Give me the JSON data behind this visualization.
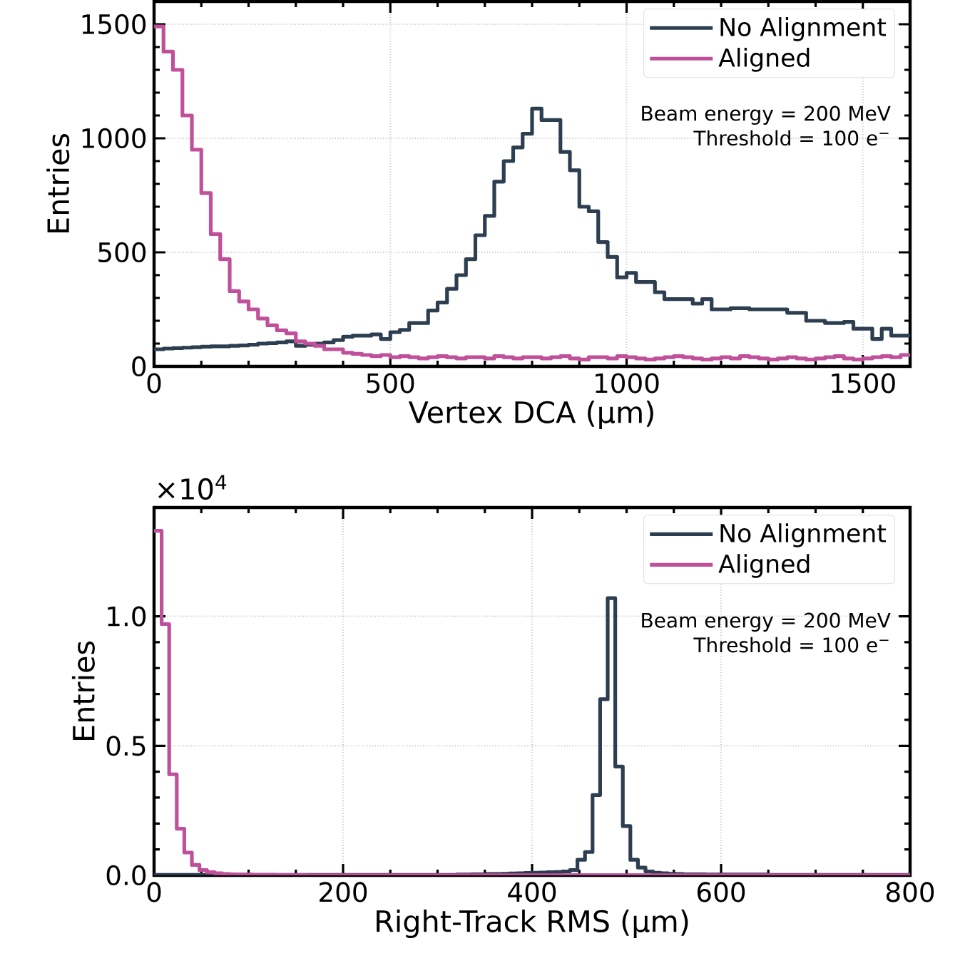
{
  "chart_data": [
    {
      "type": "histogram",
      "xlabel": "Vertex DCA (μm)",
      "ylabel": "Entries",
      "bins": [
        0,
        20,
        40,
        60,
        80,
        100,
        120,
        140,
        160,
        180,
        200,
        220,
        240,
        260,
        280,
        300,
        320,
        340,
        360,
        380,
        400,
        420,
        440,
        460,
        480,
        500,
        520,
        540,
        560,
        580,
        600,
        620,
        640,
        660,
        680,
        700,
        720,
        740,
        760,
        780,
        800,
        820,
        840,
        860,
        880,
        900,
        920,
        940,
        960,
        980,
        1000,
        1020,
        1040,
        1060,
        1080,
        1100,
        1120,
        1140,
        1160,
        1180,
        1200,
        1220,
        1240,
        1260,
        1280,
        1300,
        1320,
        1340,
        1360,
        1380,
        1400,
        1420,
        1440,
        1460,
        1480,
        1500,
        1520,
        1540,
        1560,
        1580,
        1600
      ],
      "series": [
        {
          "name": "No Alignment",
          "color": "#2c3e50",
          "values": [
            75,
            78,
            80,
            82,
            84,
            86,
            88,
            88,
            90,
            92,
            95,
            100,
            102,
            105,
            110,
            90,
            95,
            100,
            105,
            115,
            130,
            135,
            135,
            140,
            120,
            150,
            160,
            190,
            190,
            245,
            280,
            340,
            400,
            470,
            575,
            660,
            810,
            900,
            960,
            1020,
            1130,
            1080,
            1080,
            940,
            860,
            700,
            680,
            545,
            480,
            390,
            410,
            370,
            370,
            325,
            295,
            295,
            295,
            275,
            295,
            250,
            250,
            255,
            255,
            250,
            250,
            250,
            250,
            235,
            235,
            200,
            200,
            190,
            190,
            195,
            165,
            165,
            120,
            165,
            135,
            135
          ]
        },
        {
          "name": "Aligned",
          "color": "#c0509a",
          "values": [
            1490,
            1380,
            1300,
            1100,
            950,
            760,
            580,
            470,
            330,
            285,
            250,
            210,
            180,
            158,
            145,
            110,
            100,
            90,
            75,
            75,
            60,
            55,
            50,
            45,
            50,
            40,
            45,
            40,
            35,
            40,
            45,
            40,
            35,
            40,
            40,
            35,
            45,
            40,
            35,
            40,
            40,
            35,
            40,
            45,
            35,
            30,
            40,
            40,
            35,
            45,
            40,
            35,
            30,
            35,
            40,
            45,
            40,
            35,
            30,
            35,
            40,
            35,
            45,
            40,
            35,
            30,
            35,
            40,
            35,
            30,
            35,
            40,
            45,
            35,
            30,
            35,
            40,
            45,
            40,
            50
          ]
        }
      ],
      "xlim": [
        0,
        1600
      ],
      "ylim": [
        0,
        1600
      ],
      "xticks": [
        0,
        500,
        1000,
        1500
      ],
      "yticks": [
        0,
        500,
        1000,
        1500
      ],
      "grid": true,
      "legend": "top right",
      "annotations": [
        "Beam energy = 200 MeV",
        "Threshold = 100 e$^{−}$"
      ]
    },
    {
      "type": "histogram",
      "xlabel": "Right-Track RMS (μm)",
      "ylabel": "Entries",
      "bins": [
        0,
        8,
        16,
        24,
        32,
        40,
        48,
        56,
        64,
        72,
        80,
        88,
        96,
        104,
        112,
        120,
        128,
        136,
        144,
        152,
        160,
        168,
        176,
        184,
        192,
        200,
        208,
        216,
        224,
        232,
        240,
        248,
        256,
        264,
        272,
        280,
        288,
        296,
        304,
        312,
        320,
        328,
        336,
        344,
        352,
        360,
        368,
        376,
        384,
        392,
        400,
        408,
        416,
        424,
        432,
        440,
        448,
        456,
        464,
        472,
        480,
        488,
        496,
        504,
        512,
        520,
        528,
        536,
        544,
        552,
        560,
        568,
        576,
        584,
        592,
        600,
        608,
        616,
        624,
        632,
        640,
        648,
        656,
        664,
        672,
        680,
        688,
        696,
        704,
        712,
        720,
        728,
        736,
        744,
        752,
        760,
        768,
        776,
        784,
        792,
        800
      ],
      "series": [
        {
          "name": "No Alignment",
          "color": "#2c3e50",
          "values": [
            0.002,
            0.002,
            0.002,
            0.002,
            0.002,
            0.002,
            0.002,
            0.002,
            0.002,
            0.002,
            0.002,
            0.002,
            0.002,
            0.002,
            0.002,
            0.002,
            0.002,
            0.002,
            0.002,
            0.002,
            0.002,
            0.002,
            0.002,
            0.002,
            0.002,
            0.002,
            0.002,
            0.002,
            0.002,
            0.002,
            0.002,
            0.002,
            0.002,
            0.002,
            0.002,
            0.002,
            0.002,
            0.002,
            0.002,
            0.002,
            0.003,
            0.003,
            0.004,
            0.004,
            0.005,
            0.005,
            0.006,
            0.007,
            0.008,
            0.009,
            0.01,
            0.011,
            0.012,
            0.013,
            0.015,
            0.02,
            0.06,
            0.09,
            0.31,
            0.68,
            1.07,
            0.42,
            0.19,
            0.06,
            0.03,
            0.015,
            0.01,
            0.008,
            0.006,
            0.005,
            0.004,
            0.004,
            0.004,
            0.003,
            0.003,
            0.003,
            0.003,
            0.003,
            0.003,
            0.003,
            0.003,
            0.002,
            0.002,
            0.002,
            0.002,
            0.002,
            0.002,
            0.002,
            0.002,
            0.002,
            0.002,
            0.002,
            0.002,
            0.002,
            0.002,
            0.002,
            0.002,
            0.002,
            0.002,
            0.002
          ]
        },
        {
          "name": "Aligned",
          "color": "#c0509a",
          "values": [
            1.33,
            0.97,
            0.39,
            0.18,
            0.088,
            0.04,
            0.02,
            0.012,
            0.008,
            0.005,
            0.004,
            0.003,
            0.003,
            0.002,
            0.002,
            0.002,
            0.001,
            0.001,
            0.001,
            0.001,
            0,
            0,
            0,
            0,
            0,
            0,
            0,
            0,
            0,
            0,
            0,
            0,
            0,
            0,
            0,
            0,
            0,
            0,
            0,
            0,
            0,
            0,
            0,
            0,
            0,
            0,
            0,
            0,
            0,
            0,
            0,
            0,
            0,
            0,
            0,
            0,
            0,
            0,
            0,
            0,
            0,
            0,
            0,
            0,
            0,
            0,
            0,
            0,
            0,
            0,
            0,
            0,
            0,
            0,
            0,
            0,
            0,
            0,
            0,
            0,
            0,
            0,
            0,
            0,
            0,
            0,
            0,
            0,
            0,
            0,
            0,
            0,
            0,
            0,
            0,
            0,
            0,
            0,
            0,
            0
          ]
        }
      ],
      "xlim": [
        0,
        800
      ],
      "ylim": [
        0,
        1.42
      ],
      "xticks": [
        0,
        200,
        400,
        600,
        800
      ],
      "yticks": [
        {
          "value": 0,
          "label": "0.0"
        },
        {
          "value": 0.5,
          "label": "0.5"
        },
        {
          "value": 1.0,
          "label": "1.0"
        }
      ],
      "grid": true,
      "legend": "top right",
      "annotations": [
        "Beam energy = 200 MeV",
        "Threshold = 100 e$^{−}$",
        "×10$^{4}$"
      ]
    }
  ]
}
